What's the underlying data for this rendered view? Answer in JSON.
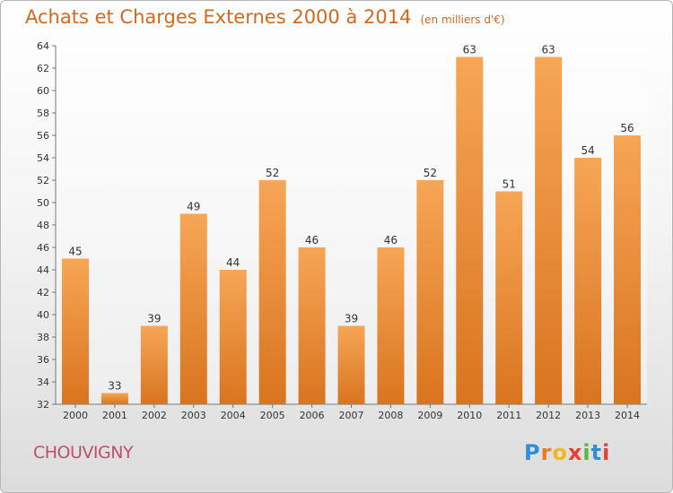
{
  "chart_data": {
    "type": "bar",
    "title": "Achats et Charges Externes 2000 à 2014",
    "subtitle": "(en milliers d'€)",
    "categories": [
      "2000",
      "2001",
      "2002",
      "2003",
      "2004",
      "2005",
      "2006",
      "2007",
      "2008",
      "2009",
      "2010",
      "2011",
      "2012",
      "2013",
      "2014"
    ],
    "values": [
      45,
      33,
      39,
      49,
      44,
      52,
      46,
      39,
      46,
      52,
      63,
      51,
      63,
      54,
      56
    ],
    "ylim": [
      32,
      64
    ],
    "yticks": [
      32,
      34,
      36,
      38,
      40,
      42,
      44,
      46,
      48,
      50,
      52,
      54,
      56,
      58,
      60,
      62,
      64
    ],
    "grid": false,
    "legend": "none",
    "bar_color": "#e8852e",
    "bar_color_light": "#f6a656"
  },
  "footer": {
    "commune": "CHOUVIGNY",
    "logo_text": "Proxiti",
    "logo_colors": [
      "#2e8fd6",
      "#e87e1e",
      "#f2b81b",
      "#e8412f",
      "#5bb73a",
      "#2e8fd6",
      "#e8412f"
    ]
  }
}
